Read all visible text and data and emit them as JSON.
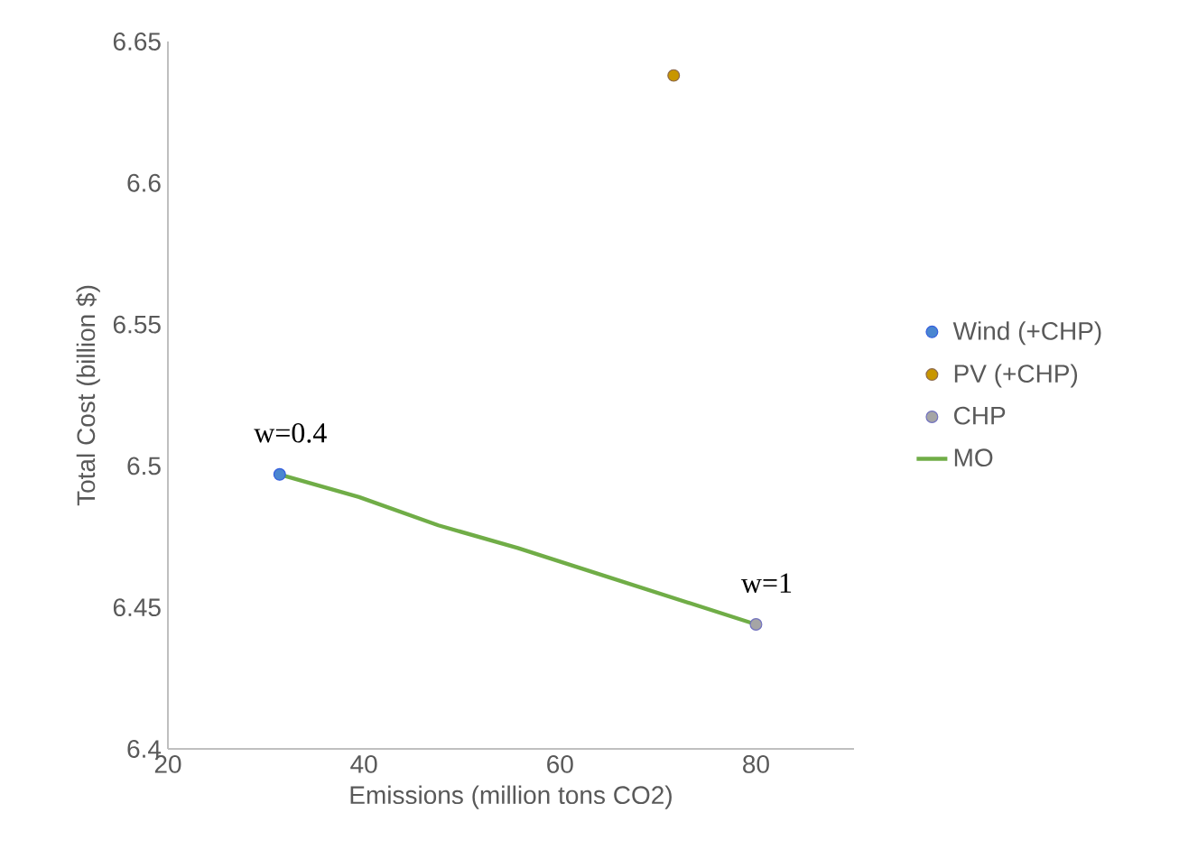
{
  "chart_data": {
    "type": "scatter",
    "xlabel": "Emissions (million tons CO2)",
    "ylabel": "Total Cost (billion $)",
    "xlim": [
      20,
      90
    ],
    "xticks": [
      20,
      40,
      60,
      80
    ],
    "ylim": [
      6.4,
      6.65
    ],
    "yticks": [
      6.4,
      6.45,
      6.5,
      6.55,
      6.6,
      6.65
    ],
    "legend": "right",
    "series": [
      {
        "name": "Wind (+CHP)",
        "marker": "circle",
        "color": "#4a86d0",
        "x": [
          31.4
        ],
        "values": [
          6.497
        ]
      },
      {
        "name": "PV (+CHP)",
        "marker": "circle",
        "color": "#c89600",
        "x": [
          71.6
        ],
        "values": [
          6.638
        ]
      },
      {
        "name": "CHP",
        "marker": "circle",
        "color": "#a5a5a5",
        "x": [
          80.0
        ],
        "values": [
          6.444
        ]
      },
      {
        "name": "MO",
        "type": "line",
        "marker": "none",
        "color": "#70ad47",
        "x": [
          31.4,
          39.5,
          47.6,
          55.7,
          63.8,
          71.9,
          80.0
        ],
        "values": [
          6.497,
          6.489,
          6.479,
          6.471,
          6.462,
          6.453,
          6.444
        ]
      }
    ],
    "annotations": [
      {
        "text": "w=0.4",
        "x": 31.4,
        "y": 6.497
      },
      {
        "text": "w=1",
        "x": 80.0,
        "y": 6.444
      }
    ]
  }
}
